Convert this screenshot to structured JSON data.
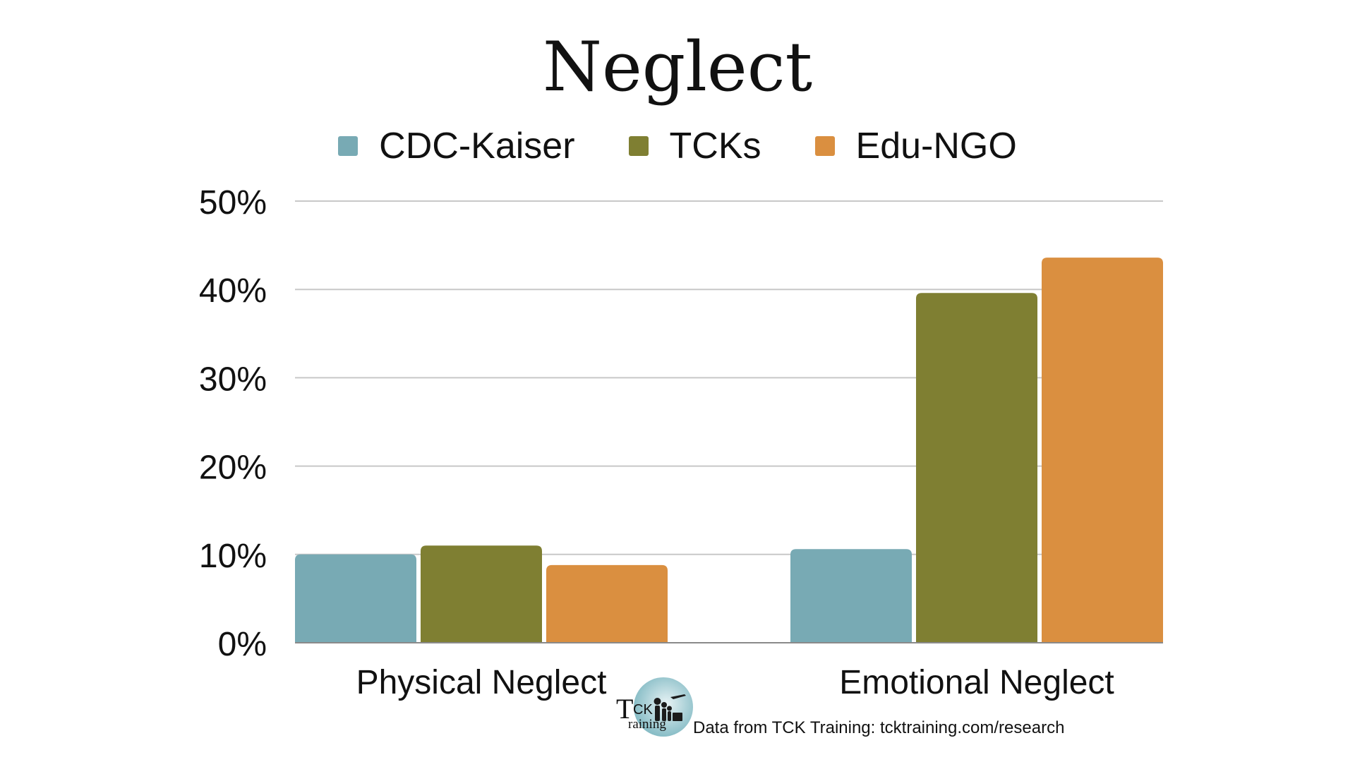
{
  "title": "Neglect",
  "legend": {
    "items": [
      {
        "label": "CDC-Kaiser",
        "color": "#78aab4"
      },
      {
        "label": "TCKs",
        "color": "#7f7f32"
      },
      {
        "label": "Edu-NGO",
        "color": "#da8f40"
      }
    ]
  },
  "chart_data": {
    "type": "bar",
    "title": "Neglect",
    "categories": [
      "Physical Neglect",
      "Emotional Neglect"
    ],
    "series": [
      {
        "name": "CDC-Kaiser",
        "values": [
          10,
          10.6
        ],
        "color": "#78aab4"
      },
      {
        "name": "TCKs",
        "values": [
          11,
          39.6
        ],
        "color": "#7f7f32"
      },
      {
        "name": "Edu-NGO",
        "values": [
          8.8,
          43.6
        ],
        "color": "#da8f40"
      }
    ],
    "yticks": [
      "0%",
      "10%",
      "20%",
      "30%",
      "40%",
      "50%"
    ],
    "ylim": [
      0,
      50
    ],
    "ylabel": "",
    "xlabel": "",
    "grid": true,
    "legend_position": "top"
  },
  "footer": {
    "logo_text": "TCK Training",
    "credit": "Data from TCK Training: tcktraining.com/research"
  }
}
